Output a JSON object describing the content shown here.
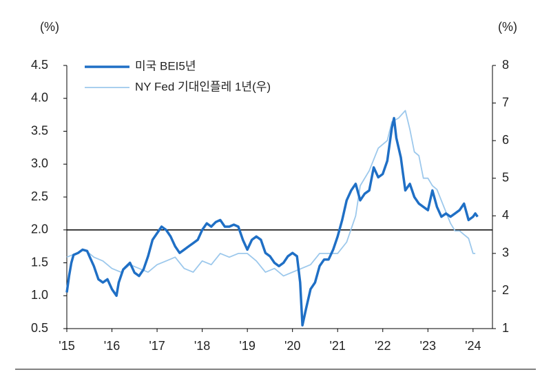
{
  "chart_data": {
    "type": "line",
    "y_unit": "(%)",
    "y2_unit": "(%)",
    "xlim": [
      2015,
      2024.43
    ],
    "xticks": [
      {
        "value": 2015,
        "label": "'15"
      },
      {
        "value": 2016,
        "label": "'16"
      },
      {
        "value": 2017,
        "label": "'17"
      },
      {
        "value": 2018,
        "label": "'18"
      },
      {
        "value": 2019,
        "label": "'19"
      },
      {
        "value": 2020,
        "label": "'20"
      },
      {
        "value": 2021,
        "label": "'21"
      },
      {
        "value": 2022,
        "label": "'22"
      },
      {
        "value": 2023,
        "label": "'23"
      },
      {
        "value": 2024,
        "label": "'24"
      }
    ],
    "ylim": [
      0.5,
      4.5
    ],
    "yticks": [
      0.5,
      {
        "value": 1,
        "label": "1.0"
      },
      1.5,
      {
        "value": 2,
        "label": "2.0"
      },
      2.5,
      {
        "value": 3,
        "label": "3.0"
      },
      3.5,
      {
        "value": 4,
        "label": "4.0"
      },
      4.5
    ],
    "y2lim": [
      1,
      8
    ],
    "y2ticks": [
      1,
      2,
      3,
      4,
      5,
      6,
      7,
      8
    ],
    "hline": 2,
    "series": [
      {
        "name": "미국 BEI5년",
        "color": "#1f6fc5",
        "width": 3.5,
        "x": [
          2015.0,
          2015.05,
          2015.1,
          2015.15,
          2015.25,
          2015.35,
          2015.45,
          2015.5,
          2015.6,
          2015.7,
          2015.8,
          2015.9,
          2016.0,
          2016.1,
          2016.15,
          2016.25,
          2016.4,
          2016.5,
          2016.6,
          2016.7,
          2016.8,
          2016.9,
          2017.0,
          2017.1,
          2017.2,
          2017.3,
          2017.4,
          2017.5,
          2017.6,
          2017.7,
          2017.8,
          2017.9,
          2018.0,
          2018.1,
          2018.2,
          2018.3,
          2018.4,
          2018.5,
          2018.6,
          2018.7,
          2018.8,
          2018.9,
          2019.0,
          2019.1,
          2019.2,
          2019.3,
          2019.4,
          2019.5,
          2019.6,
          2019.7,
          2019.8,
          2019.9,
          2020.0,
          2020.1,
          2020.17,
          2020.22,
          2020.3,
          2020.4,
          2020.5,
          2020.6,
          2020.7,
          2020.8,
          2020.9,
          2021.0,
          2021.1,
          2021.2,
          2021.3,
          2021.4,
          2021.5,
          2021.6,
          2021.7,
          2021.8,
          2021.9,
          2022.0,
          2022.1,
          2022.2,
          2022.25,
          2022.3,
          2022.4,
          2022.45,
          2022.5,
          2022.6,
          2022.7,
          2022.8,
          2022.9,
          2023.0,
          2023.1,
          2023.2,
          2023.3,
          2023.4,
          2023.5,
          2023.6,
          2023.7,
          2023.8,
          2023.9,
          2024.0,
          2024.05,
          2024.1
        ],
        "values": [
          1.05,
          1.3,
          1.5,
          1.62,
          1.65,
          1.7,
          1.68,
          1.6,
          1.45,
          1.25,
          1.2,
          1.25,
          1.1,
          1.0,
          1.2,
          1.4,
          1.5,
          1.35,
          1.3,
          1.4,
          1.6,
          1.85,
          1.95,
          2.05,
          2.0,
          1.9,
          1.75,
          1.65,
          1.7,
          1.75,
          1.8,
          1.85,
          2.0,
          2.1,
          2.05,
          2.12,
          2.15,
          2.05,
          2.05,
          2.08,
          2.05,
          1.85,
          1.7,
          1.85,
          1.9,
          1.85,
          1.65,
          1.6,
          1.5,
          1.45,
          1.5,
          1.6,
          1.65,
          1.6,
          1.2,
          0.55,
          0.8,
          1.1,
          1.2,
          1.45,
          1.55,
          1.55,
          1.7,
          1.9,
          2.15,
          2.45,
          2.6,
          2.7,
          2.45,
          2.55,
          2.6,
          2.95,
          2.8,
          2.85,
          3.05,
          3.55,
          3.7,
          3.4,
          3.1,
          2.85,
          2.6,
          2.7,
          2.5,
          2.4,
          2.35,
          2.3,
          2.6,
          2.35,
          2.2,
          2.25,
          2.2,
          2.25,
          2.3,
          2.4,
          2.15,
          2.2,
          2.25,
          2.2
        ]
      },
      {
        "name": "NY Fed 기대인플레 1년(우)",
        "color": "#9cc8ec",
        "width": 1.8,
        "axis": "y2",
        "x": [
          2015.0,
          2015.2,
          2015.4,
          2015.6,
          2015.8,
          2016.0,
          2016.2,
          2016.4,
          2016.6,
          2016.8,
          2017.0,
          2017.2,
          2017.4,
          2017.6,
          2017.8,
          2018.0,
          2018.2,
          2018.4,
          2018.6,
          2018.8,
          2019.0,
          2019.2,
          2019.4,
          2019.6,
          2019.8,
          2020.0,
          2020.2,
          2020.4,
          2020.6,
          2020.8,
          2021.0,
          2021.2,
          2021.4,
          2021.5,
          2021.7,
          2021.9,
          2022.1,
          2022.2,
          2022.35,
          2022.5,
          2022.6,
          2022.7,
          2022.8,
          2022.9,
          2023.0,
          2023.1,
          2023.2,
          2023.4,
          2023.5,
          2023.6,
          2023.7,
          2023.8,
          2023.9,
          2024.0,
          2024.05
        ],
        "values": [
          2.9,
          3.0,
          3.1,
          2.9,
          2.8,
          2.6,
          2.5,
          2.7,
          2.6,
          2.5,
          2.7,
          2.8,
          2.9,
          2.6,
          2.5,
          2.8,
          2.7,
          3.0,
          2.9,
          3.0,
          3.0,
          2.8,
          2.5,
          2.6,
          2.4,
          2.5,
          2.6,
          2.7,
          3.0,
          3.0,
          3.0,
          3.3,
          4.0,
          4.8,
          5.2,
          5.8,
          6.0,
          6.5,
          6.6,
          6.8,
          6.3,
          5.7,
          5.6,
          5.0,
          5.0,
          4.8,
          4.7,
          4.1,
          3.8,
          3.6,
          3.6,
          3.5,
          3.4,
          3.0,
          3.0
        ]
      }
    ]
  }
}
